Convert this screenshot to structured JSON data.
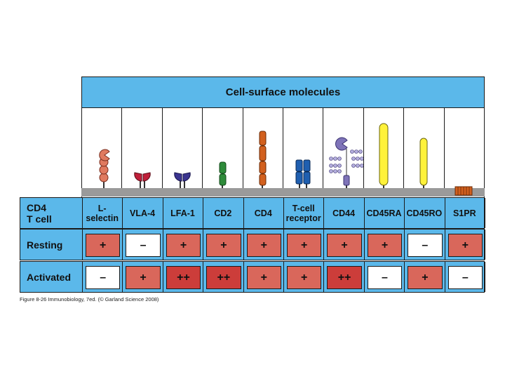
{
  "title": "Cell-surface molecules",
  "row_header": "CD4\nT cell",
  "columns": [
    {
      "name": "L-\nselectin",
      "resting": "+",
      "activated": "–"
    },
    {
      "name": "VLA-4",
      "resting": "–",
      "activated": "+"
    },
    {
      "name": "LFA-1",
      "resting": "+",
      "activated": "++"
    },
    {
      "name": "CD2",
      "resting": "+",
      "activated": "++"
    },
    {
      "name": "CD4",
      "resting": "+",
      "activated": "+"
    },
    {
      "name": "T-cell\nreceptor",
      "resting": "+",
      "activated": "+"
    },
    {
      "name": "CD44",
      "resting": "+",
      "activated": "++"
    },
    {
      "name": "CD45RA",
      "resting": "+",
      "activated": "–"
    },
    {
      "name": "CD45RO",
      "resting": "–",
      "activated": "+"
    },
    {
      "name": "S1PR",
      "resting": "+",
      "activated": "–"
    }
  ],
  "rows": {
    "resting": "Resting",
    "activated": "Activated"
  },
  "caption": "Figure 8-26  Immunobiology, 7ed. (© Garland Science 2008)",
  "colors": {
    "header_blue": "#5bb8ea",
    "plus": "#d9675b",
    "double_plus": "#cc3d3a",
    "negative": "#ffffff",
    "membrane": "#9a9a9a"
  },
  "icons": [
    "l-selectin-icon",
    "vla4-icon",
    "lfa1-icon",
    "cd2-icon",
    "cd4-icon",
    "tcr-icon",
    "cd44-icon",
    "cd45ra-icon",
    "cd45ro-icon",
    "s1pr-icon"
  ]
}
